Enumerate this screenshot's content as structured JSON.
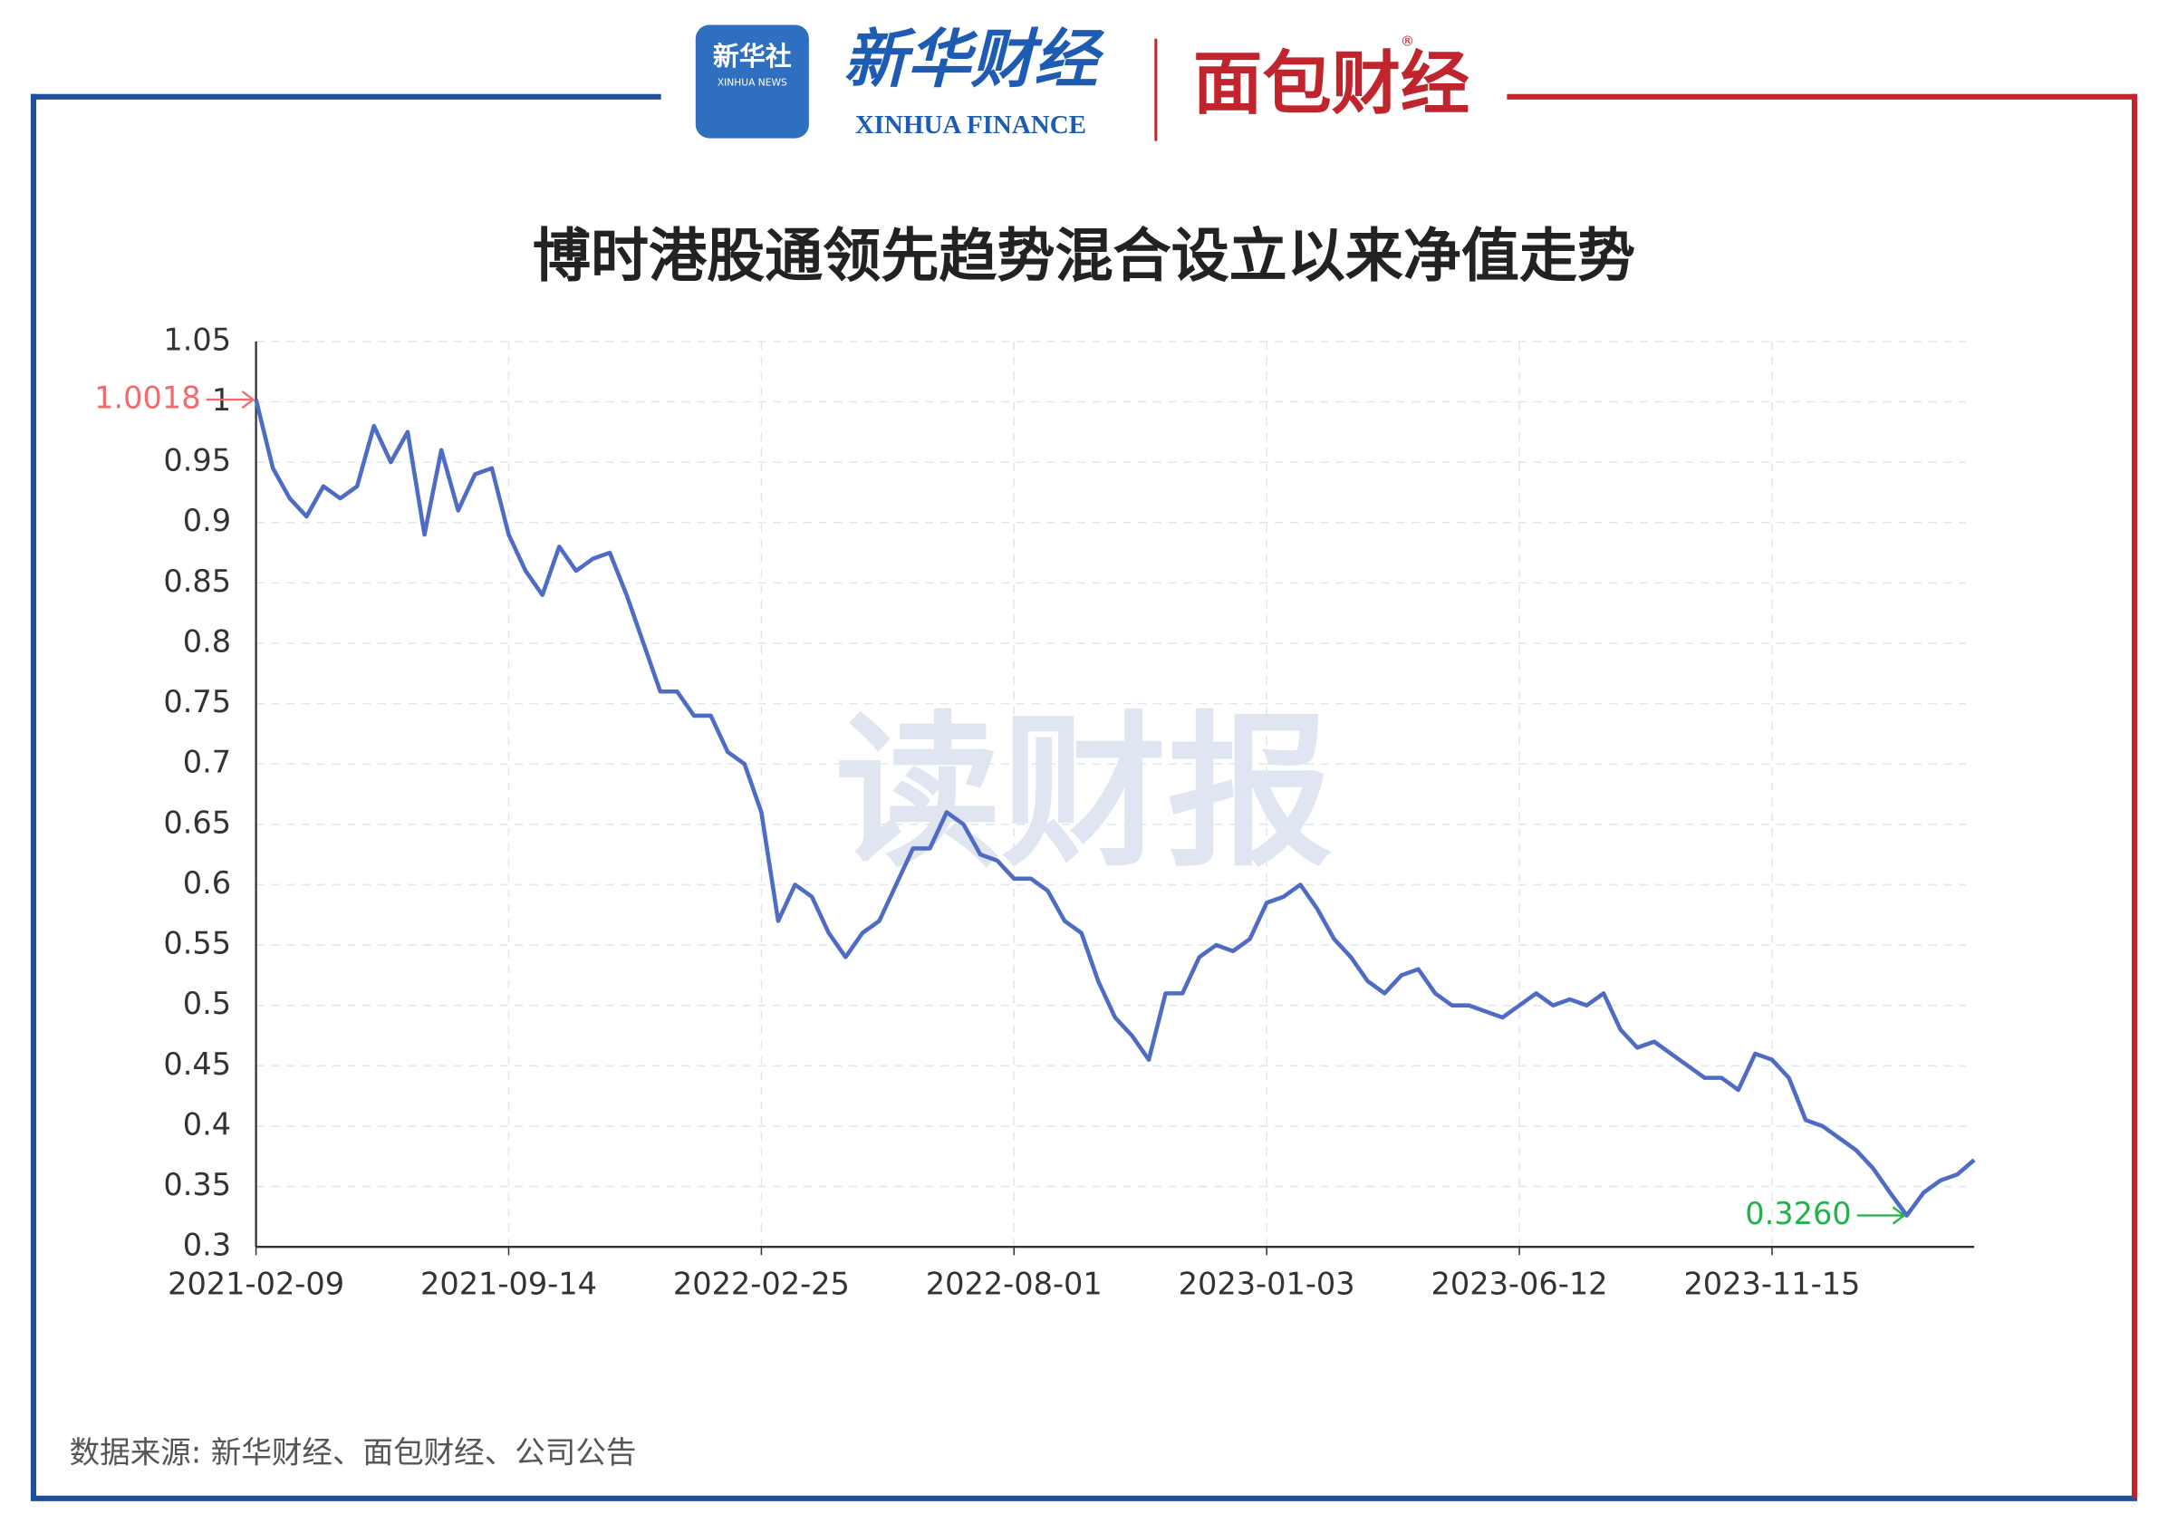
{
  "header": {
    "xinhua_news_cn": "新华社",
    "xinhua_news_en": "XINHUA NEWS",
    "xinhua_finance_cn": "新华财经",
    "xinhua_finance_en": "XINHUA FINANCE",
    "mianbao": "面包财经",
    "registered": "®"
  },
  "chart_data": {
    "type": "line",
    "title": "博时港股通领先趋势混合设立以来净值走势",
    "watermark": "读财报",
    "source": "数据来源: 新华财经、面包财经、公司公告",
    "categories": [
      "2021-02-09",
      null,
      null,
      null,
      null,
      null,
      null,
      null,
      null,
      null,
      null,
      null,
      null,
      null,
      null,
      "2021-09-14",
      null,
      null,
      null,
      null,
      null,
      null,
      null,
      null,
      null,
      null,
      null,
      null,
      null,
      null,
      "2022-02-25",
      null,
      null,
      null,
      null,
      null,
      null,
      null,
      null,
      null,
      null,
      null,
      null,
      null,
      null,
      "2022-08-01",
      null,
      null,
      null,
      null,
      null,
      null,
      null,
      null,
      null,
      null,
      null,
      null,
      null,
      null,
      "2023-01-03",
      null,
      null,
      null,
      null,
      null,
      null,
      null,
      null,
      null,
      null,
      null,
      null,
      null,
      null,
      "2023-06-12",
      null,
      null,
      null,
      null,
      null,
      null,
      null,
      null,
      null,
      null,
      null,
      null,
      null,
      null,
      "2023-11-15",
      null,
      null,
      null,
      null,
      null,
      null,
      null,
      null,
      null,
      null,
      null,
      null
    ],
    "series": [
      {
        "color": "#4f6cc4",
        "values": [
          1.0018,
          0.945,
          0.92,
          0.905,
          0.93,
          0.92,
          0.93,
          0.98,
          0.95,
          0.975,
          0.89,
          0.96,
          0.91,
          0.94,
          0.945,
          0.89,
          0.86,
          0.84,
          0.88,
          0.86,
          0.87,
          0.875,
          0.84,
          0.8,
          0.76,
          0.76,
          0.74,
          0.74,
          0.71,
          0.7,
          0.66,
          0.57,
          0.6,
          0.59,
          0.56,
          0.54,
          0.56,
          0.57,
          0.6,
          0.63,
          0.63,
          0.66,
          0.65,
          0.625,
          0.62,
          0.605,
          0.605,
          0.595,
          0.57,
          0.56,
          0.52,
          0.49,
          0.475,
          0.455,
          0.51,
          0.51,
          0.54,
          0.55,
          0.545,
          0.555,
          0.585,
          0.59,
          0.6,
          0.58,
          0.555,
          0.54,
          0.52,
          0.51,
          0.525,
          0.53,
          0.51,
          0.5,
          0.5,
          0.495,
          0.49,
          0.5,
          0.51,
          0.5,
          0.505,
          0.5,
          0.51,
          0.48,
          0.465,
          0.47,
          0.46,
          0.45,
          0.44,
          0.44,
          0.43,
          0.46,
          0.455,
          0.44,
          0.405,
          0.4,
          0.39,
          0.38,
          0.365,
          0.345,
          0.326,
          0.345,
          0.355,
          0.36,
          0.372
        ]
      }
    ],
    "annotations": [
      {
        "value": 1.0018,
        "color": "#f26b6b"
      },
      {
        "value": 0.326,
        "label": "0.3260",
        "color": "#22b24c"
      }
    ],
    "ylim": [
      0.3,
      1.05
    ],
    "yticks": [
      0.3,
      0.35,
      0.4,
      0.45,
      0.5,
      0.55,
      0.6,
      0.65,
      0.7,
      0.75,
      0.8,
      0.85,
      0.9,
      0.95,
      1,
      1.05
    ],
    "grid": true
  }
}
